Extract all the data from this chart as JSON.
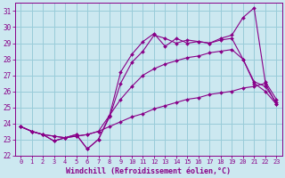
{
  "xlabel": "Windchill (Refroidissement éolien,°C)",
  "background_color": "#cce8f0",
  "grid_color": "#99ccd9",
  "line_color": "#880088",
  "xlim": [
    -0.5,
    23.5
  ],
  "ylim": [
    22,
    31.5
  ],
  "yticks": [
    22,
    23,
    24,
    25,
    26,
    27,
    28,
    29,
    30,
    31
  ],
  "xticks": [
    0,
    1,
    2,
    3,
    4,
    5,
    6,
    7,
    8,
    9,
    10,
    11,
    12,
    13,
    14,
    15,
    16,
    17,
    18,
    19,
    20,
    21,
    22,
    23
  ],
  "series": [
    {
      "x": [
        0,
        1,
        2,
        3,
        4,
        5,
        6,
        7,
        8,
        9,
        10,
        11,
        12,
        13,
        14,
        15,
        16,
        17,
        18,
        19,
        20,
        21,
        22,
        23
      ],
      "y": [
        23.8,
        23.5,
        23.3,
        23.2,
        23.1,
        23.2,
        23.3,
        23.5,
        23.8,
        24.1,
        24.4,
        24.6,
        24.9,
        25.1,
        25.3,
        25.5,
        25.6,
        25.8,
        25.9,
        26.0,
        26.2,
        26.3,
        26.5,
        25.2
      ]
    },
    {
      "x": [
        0,
        1,
        2,
        3,
        4,
        5,
        6,
        7,
        8,
        9,
        10,
        11,
        12,
        13,
        14,
        15,
        16,
        17,
        18,
        19,
        20,
        21,
        22,
        23
      ],
      "y": [
        23.8,
        23.5,
        23.3,
        23.2,
        23.1,
        23.2,
        23.3,
        23.5,
        24.5,
        25.5,
        26.3,
        27.0,
        27.4,
        27.7,
        27.9,
        28.1,
        28.2,
        28.4,
        28.5,
        28.6,
        28.0,
        26.6,
        26.3,
        25.3
      ]
    },
    {
      "x": [
        0,
        1,
        2,
        3,
        4,
        5,
        6,
        7,
        8,
        9,
        10,
        11,
        12,
        13,
        14,
        15,
        16,
        17,
        18,
        19,
        20,
        21,
        22,
        23
      ],
      "y": [
        23.8,
        23.5,
        23.3,
        22.9,
        23.1,
        23.3,
        22.4,
        23.0,
        24.4,
        26.5,
        27.8,
        28.5,
        29.5,
        29.3,
        29.0,
        29.2,
        29.1,
        29.0,
        29.2,
        29.3,
        28.0,
        26.5,
        26.0,
        25.2
      ]
    },
    {
      "x": [
        0,
        1,
        2,
        3,
        4,
        5,
        6,
        7,
        8,
        9,
        10,
        11,
        12,
        13,
        14,
        15,
        16,
        17,
        18,
        19,
        20,
        21,
        22,
        23
      ],
      "y": [
        23.8,
        23.5,
        23.3,
        22.9,
        23.1,
        23.3,
        22.4,
        23.0,
        24.5,
        27.2,
        28.3,
        29.1,
        29.6,
        28.8,
        29.3,
        29.0,
        29.1,
        29.0,
        29.3,
        29.5,
        30.6,
        31.2,
        26.6,
        25.5
      ]
    }
  ]
}
